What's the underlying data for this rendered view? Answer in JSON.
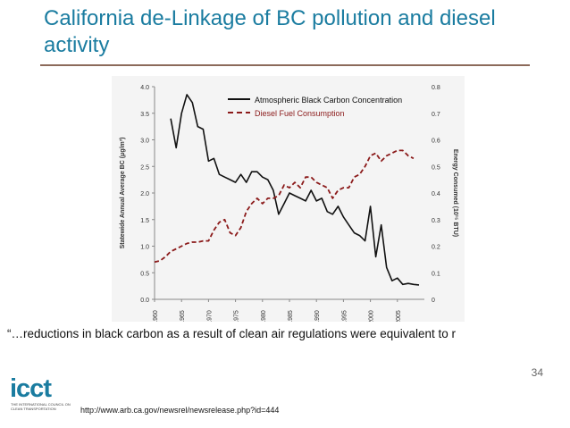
{
  "slide": {
    "title": "California de-Linkage of BC pollution and diesel activity",
    "quote": "“…reductions in black carbon as a result of clean air regulations were equivalent to r",
    "page_number": "34",
    "source_url": "http://www.arb.ca.gov/newsrel/newsrelease.php?id=444",
    "logo_text": "icct",
    "logo_subtext": "THE INTERNATIONAL COUNCIL ON CLEAN TRANSPORTATION"
  },
  "colors": {
    "title": "#1a7ca0",
    "bc_line": "#111111",
    "diesel_line": "#8b1a1a",
    "rule": "#8c6a5a"
  },
  "chart_data": {
    "type": "line",
    "x_tick_labels": [
      "1960",
      "1965",
      "1970",
      "1975",
      "1980",
      "1985",
      "1990",
      "1995",
      "2000",
      "2005"
    ],
    "xlim": [
      1960,
      2010
    ],
    "ylabel_left": "Statewide Annual Average BC (μg/m³)",
    "ylabel_right": "Energy Consumed (10¹⁵ BTU)",
    "ylim_left": [
      0,
      4.0
    ],
    "ylim_right": [
      0,
      0.8
    ],
    "y_left_ticks": [
      "0.0",
      "0.5",
      "1.0",
      "1.5",
      "2.0",
      "2.5",
      "3.0",
      "3.5",
      "4.0"
    ],
    "y_right_ticks": [
      "0",
      "0.1",
      "0.2",
      "0.3",
      "0.4",
      "0.5",
      "0.6",
      "0.7",
      "0.8"
    ],
    "legend_position": "top-right",
    "series": [
      {
        "name": "Atmospheric Black Carbon Concentration",
        "axis": "left",
        "style": "solid",
        "x": [
          1963,
          1964,
          1965,
          1966,
          1967,
          1968,
          1969,
          1970,
          1971,
          1972,
          1973,
          1974,
          1975,
          1976,
          1977,
          1978,
          1979,
          1980,
          1981,
          1982,
          1983,
          1984,
          1985,
          1986,
          1987,
          1988,
          1989,
          1990,
          1991,
          1992,
          1993,
          1994,
          1995,
          1996,
          1997,
          1998,
          1999,
          2000,
          2001,
          2002,
          2003,
          2004,
          2005,
          2006,
          2007,
          2008,
          2009
        ],
        "values": [
          3.4,
          2.85,
          3.5,
          3.85,
          3.7,
          3.25,
          3.2,
          2.6,
          2.65,
          2.35,
          2.3,
          2.25,
          2.2,
          2.35,
          2.2,
          2.4,
          2.4,
          2.3,
          2.25,
          2.05,
          1.6,
          1.8,
          2.0,
          1.95,
          1.9,
          1.85,
          2.05,
          1.85,
          1.9,
          1.65,
          1.6,
          1.75,
          1.55,
          1.4,
          1.25,
          1.2,
          1.1,
          1.75,
          0.8,
          1.4,
          0.6,
          0.35,
          0.4,
          0.28,
          0.3,
          0.28,
          0.27
        ]
      },
      {
        "name": "Diesel Fuel Consumption",
        "axis": "right",
        "style": "dashed",
        "x": [
          1960,
          1961,
          1962,
          1963,
          1964,
          1965,
          1966,
          1967,
          1968,
          1969,
          1970,
          1971,
          1972,
          1973,
          1974,
          1975,
          1976,
          1977,
          1978,
          1979,
          1980,
          1981,
          1982,
          1983,
          1984,
          1985,
          1986,
          1987,
          1988,
          1989,
          1990,
          1991,
          1992,
          1993,
          1994,
          1995,
          1996,
          1997,
          1998,
          1999,
          2000,
          2001,
          2002,
          2003,
          2004,
          2005,
          2006,
          2007,
          2008
        ],
        "values": [
          0.14,
          0.145,
          0.16,
          0.18,
          0.19,
          0.2,
          0.21,
          0.215,
          0.215,
          0.22,
          0.22,
          0.26,
          0.29,
          0.3,
          0.25,
          0.24,
          0.27,
          0.33,
          0.36,
          0.38,
          0.36,
          0.38,
          0.38,
          0.39,
          0.43,
          0.42,
          0.44,
          0.42,
          0.46,
          0.46,
          0.44,
          0.43,
          0.42,
          0.38,
          0.41,
          0.42,
          0.42,
          0.46,
          0.47,
          0.5,
          0.54,
          0.55,
          0.52,
          0.54,
          0.55,
          0.56,
          0.56,
          0.54,
          0.53
        ]
      }
    ]
  }
}
